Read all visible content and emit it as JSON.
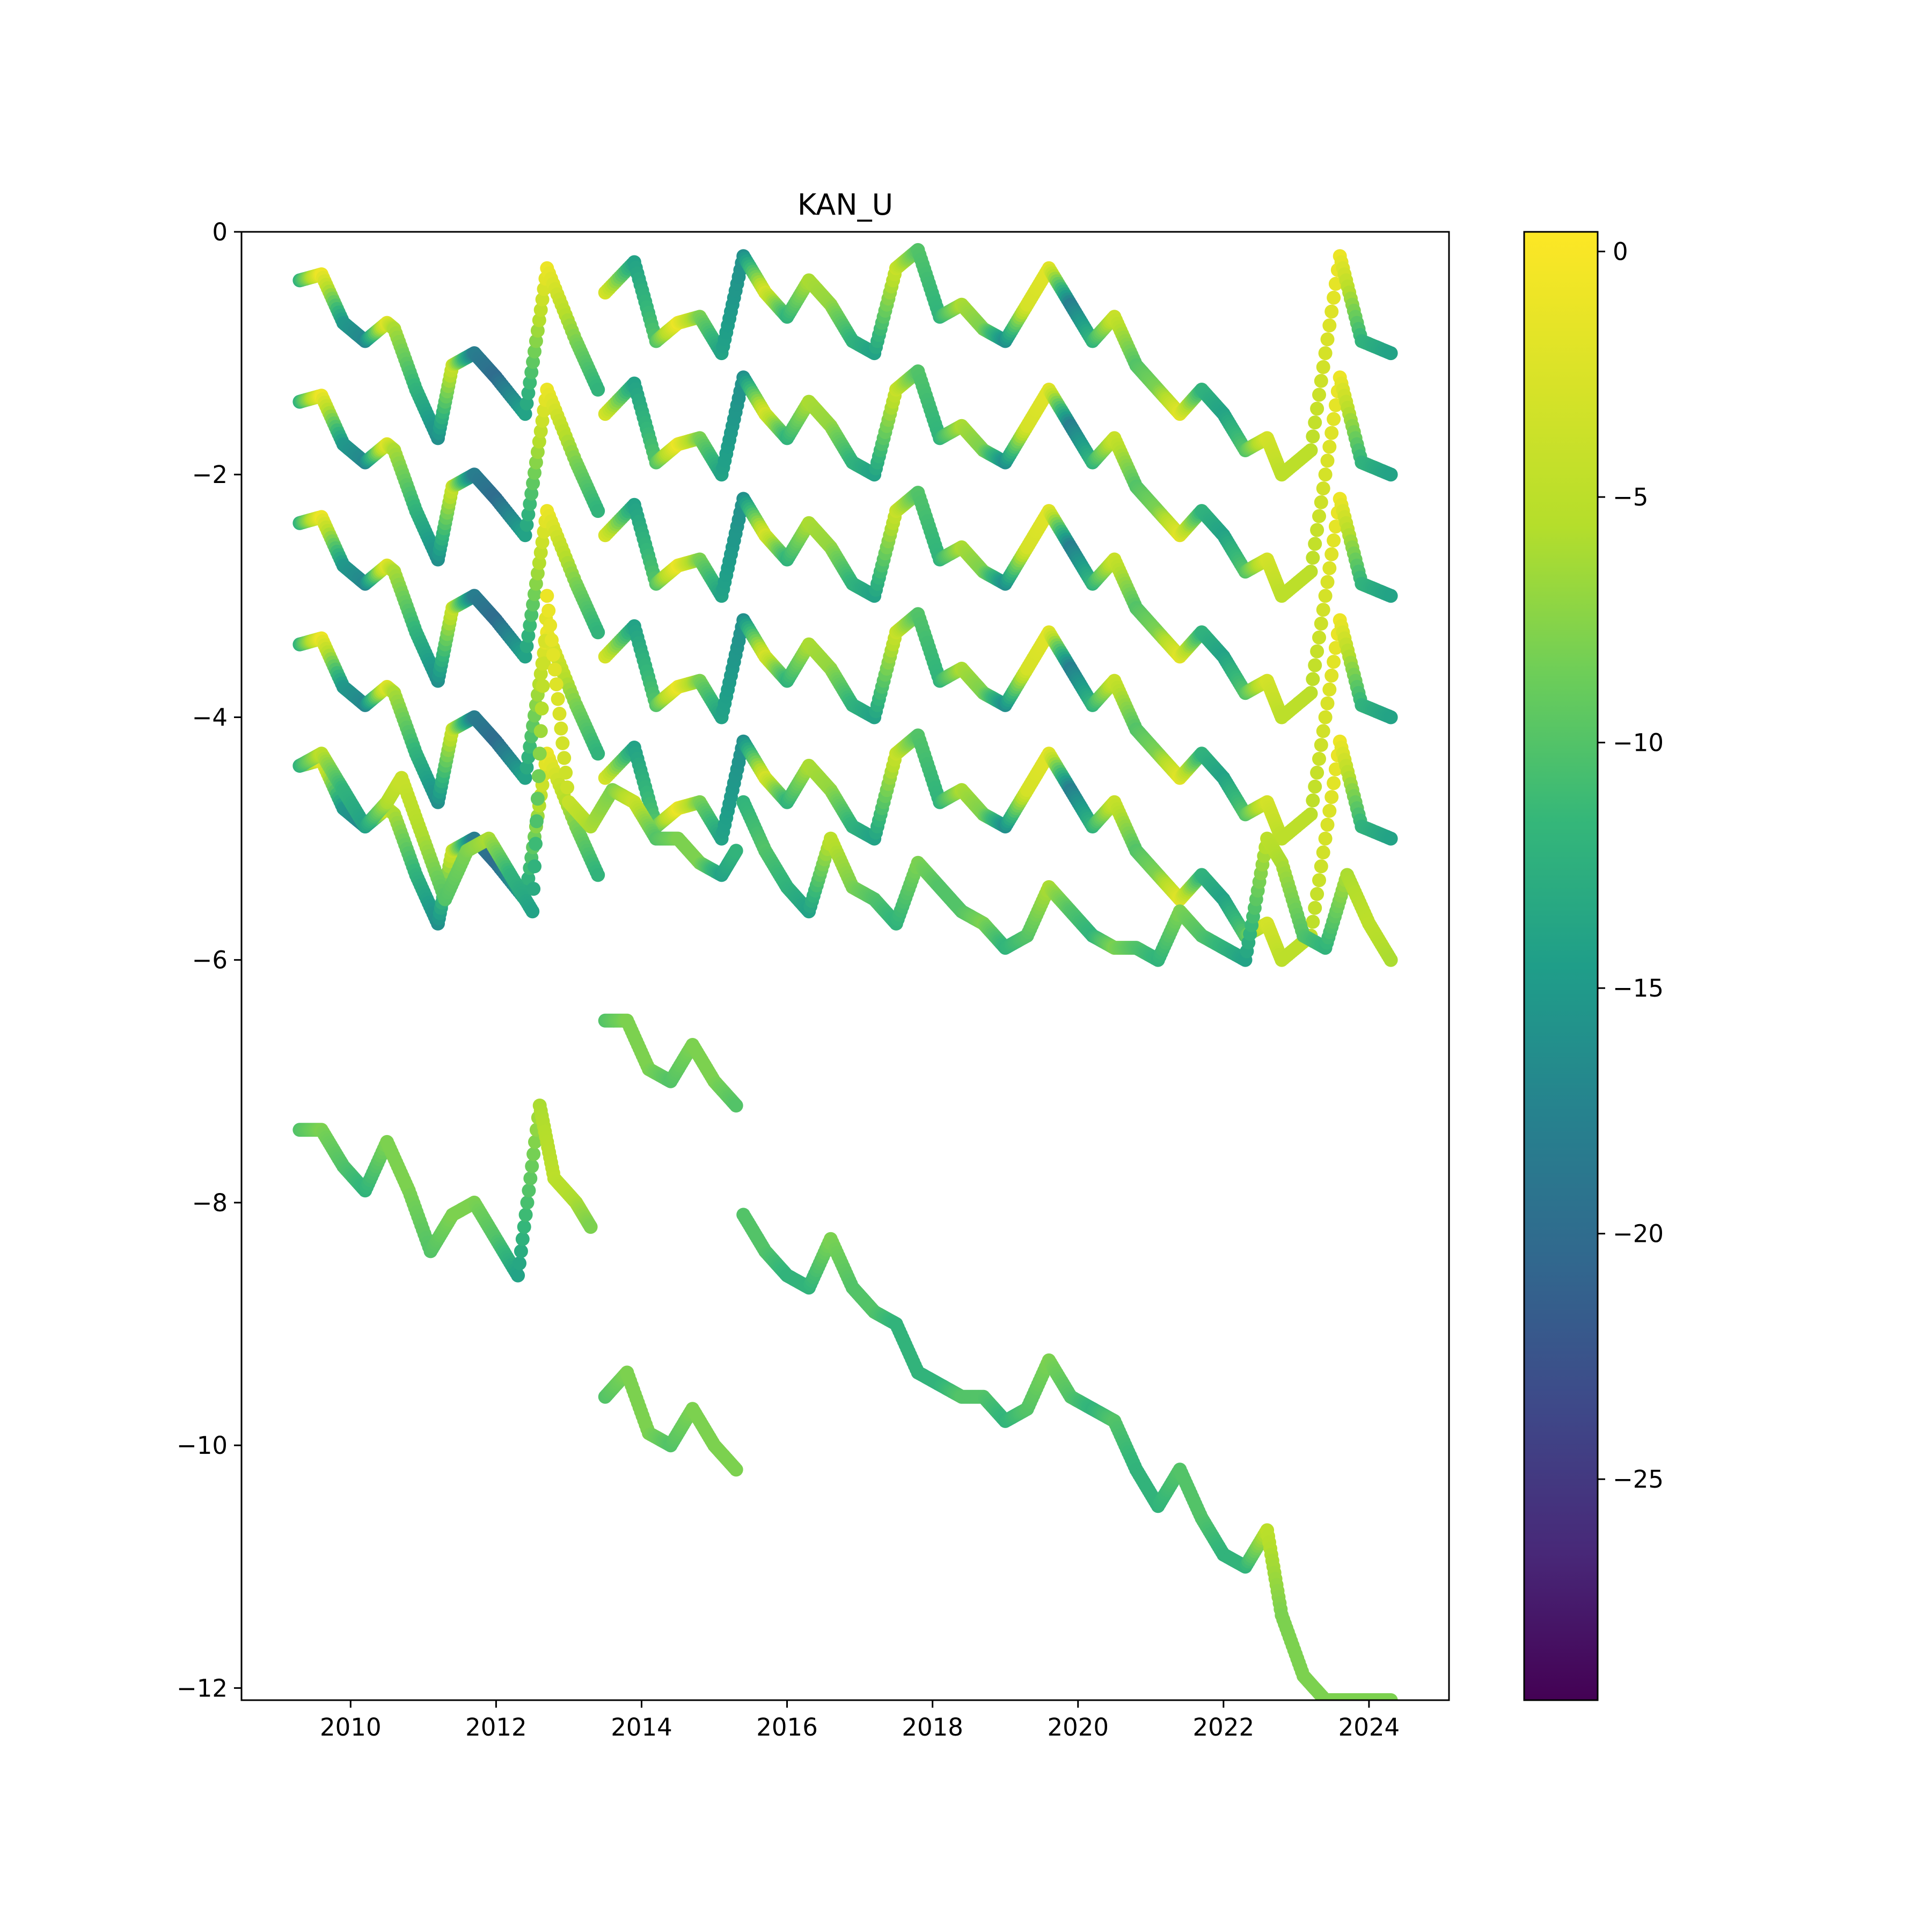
{
  "chart_data": {
    "type": "scatter",
    "title": "KAN_U",
    "xlabel": "",
    "ylabel": "",
    "xlim": [
      2008.5,
      2025.1
    ],
    "ylim": [
      -12.1,
      0
    ],
    "x_ticks": [
      2010,
      2012,
      2014,
      2016,
      2018,
      2020,
      2022,
      2024
    ],
    "x_tick_labels": [
      "2010",
      "2012",
      "2014",
      "2016",
      "2018",
      "2020",
      "2022",
      "2024"
    ],
    "y_ticks": [
      0,
      -2,
      -4,
      -6,
      -8,
      -10,
      -12
    ],
    "y_tick_labels": [
      "0",
      "−2",
      "−4",
      "−6",
      "−8",
      "−10",
      "−12"
    ],
    "colorbar": {
      "colormap": "viridis",
      "range": [
        -29.5,
        0.4
      ],
      "ticks": [
        0,
        -5,
        -10,
        -15,
        -20,
        -25
      ],
      "tick_labels": [
        "0",
        "−5",
        "−10",
        "−15",
        "−20",
        "−25"
      ]
    },
    "grid": false,
    "series": [
      {
        "x": [
          2009.3,
          2009.6,
          2009.9,
          2010.2,
          2010.5,
          2010.6,
          2010.9,
          2011.2,
          2011.4,
          2011.7,
          2012.0,
          2012.4,
          2012.7,
          2013.1,
          2013.4
        ],
        "y": [
          -0.4,
          -0.35,
          -0.75,
          -0.9,
          -0.75,
          -0.8,
          -1.3,
          -1.7,
          -1.1,
          -1.0,
          -1.2,
          -1.5,
          -0.3,
          -0.9,
          -1.3
        ],
        "c": [
          -12,
          -1,
          -15,
          -17,
          -2,
          -6,
          -12,
          -16,
          -4,
          -18,
          -20,
          -14,
          -1,
          -8,
          -12
        ]
      },
      {
        "x": [
          2013.5,
          2013.9,
          2014.2,
          2014.5,
          2014.8,
          2015.1,
          2015.4,
          2015.7,
          2016.0,
          2016.3,
          2016.6,
          2016.9,
          2017.2,
          2017.5,
          2017.8,
          2018.1,
          2018.4,
          2018.7,
          2019.0,
          2019.3,
          2019.6,
          2019.9,
          2020.2,
          2020.5,
          2020.8,
          2021.1,
          2021.4,
          2021.7,
          2022.0,
          2022.3,
          2022.6,
          2022.8,
          2023.2,
          2023.6,
          2023.9,
          2024.3
        ],
        "y": [
          -0.5,
          -0.25,
          -0.9,
          -0.75,
          -0.7,
          -1.0,
          -0.2,
          -0.5,
          -0.7,
          -0.4,
          -0.6,
          -0.9,
          -1.0,
          -0.3,
          -0.15,
          -0.7,
          -0.6,
          -0.8,
          -0.9,
          -0.6,
          -0.3,
          -0.6,
          -0.9,
          -0.7,
          -1.1,
          -1.3,
          -1.5,
          -1.3,
          -1.5,
          -1.8,
          -1.7,
          -2.0,
          -1.8,
          -0.2,
          -0.9,
          -1.0
        ],
        "c": [
          -3,
          -14,
          -10,
          -1,
          -8,
          -14,
          -16,
          -3,
          -12,
          -6,
          -7,
          -12,
          -14,
          -4,
          -10,
          -12,
          -6,
          -8,
          -16,
          -3,
          -2,
          -18,
          -12,
          -4,
          -10,
          -8,
          -2,
          -12,
          -14,
          -10,
          -3,
          -5,
          -5,
          -1,
          -12,
          -14
        ]
      },
      {
        "x": [
          2009.3,
          2009.6,
          2009.9,
          2010.2,
          2010.5,
          2010.7,
          2011.0,
          2011.3,
          2011.6,
          2011.9,
          2012.2,
          2012.5,
          2012.7,
          2013.0,
          2013.3,
          2013.6,
          2013.9,
          2014.2,
          2014.5,
          2014.8,
          2015.1,
          2015.3
        ],
        "y": [
          -4.4,
          -4.3,
          -4.6,
          -4.9,
          -4.7,
          -4.5,
          -5.0,
          -5.5,
          -5.1,
          -5.0,
          -5.3,
          -5.6,
          -3.0,
          -4.7,
          -4.9,
          -4.6,
          -4.7,
          -5.0,
          -5.0,
          -5.2,
          -5.3,
          -5.1
        ],
        "c": [
          -12,
          -5,
          -12,
          -14,
          -6,
          -4,
          -6,
          -10,
          -8,
          -6,
          -12,
          -14,
          -1,
          -4,
          -6,
          -8,
          -4,
          -10,
          -8,
          -8,
          -14,
          -12
        ]
      },
      {
        "x": [
          2015.4,
          2015.7,
          2016.0,
          2016.3,
          2016.6,
          2016.9,
          2017.2,
          2017.5,
          2017.8,
          2018.1,
          2018.4,
          2018.7,
          2019.0,
          2019.3,
          2019.6,
          2019.9,
          2020.2,
          2020.5,
          2020.8,
          2021.1,
          2021.4,
          2021.7,
          2022.0,
          2022.3,
          2022.6,
          2022.8,
          2023.1,
          2023.4,
          2023.7,
          2024.0,
          2024.3
        ],
        "y": [
          -4.7,
          -5.1,
          -5.4,
          -5.6,
          -5.0,
          -5.4,
          -5.5,
          -5.7,
          -5.2,
          -5.4,
          -5.6,
          -5.7,
          -5.9,
          -5.8,
          -5.4,
          -5.6,
          -5.8,
          -5.9,
          -5.9,
          -6.0,
          -5.6,
          -5.8,
          -5.9,
          -6.0,
          -5.0,
          -5.2,
          -5.8,
          -5.9,
          -5.3,
          -5.7,
          -6.0
        ],
        "c": [
          -12,
          -10,
          -12,
          -14,
          -5,
          -8,
          -10,
          -12,
          -8,
          -10,
          -10,
          -8,
          -12,
          -10,
          -6,
          -10,
          -12,
          -8,
          -10,
          -12,
          -8,
          -10,
          -12,
          -14,
          -5,
          -6,
          -10,
          -12,
          -6,
          -5,
          -6
        ]
      },
      {
        "x": [
          2013.5,
          2013.8,
          2014.1,
          2014.4,
          2014.7,
          2015.0,
          2015.3
        ],
        "y": [
          -6.5,
          -6.5,
          -6.9,
          -7.0,
          -6.7,
          -7.0,
          -7.2
        ],
        "c": [
          -10,
          -8,
          -8,
          -10,
          -8,
          -8,
          -10
        ]
      },
      {
        "x": [
          2009.3,
          2009.6,
          2009.9,
          2010.2,
          2010.5,
          2010.8,
          2011.1,
          2011.4,
          2011.7,
          2012.0,
          2012.3,
          2012.6,
          2012.8,
          2013.1,
          2013.3
        ],
        "y": [
          -7.4,
          -7.4,
          -7.7,
          -7.9,
          -7.5,
          -7.9,
          -8.4,
          -8.1,
          -8.0,
          -8.3,
          -8.6,
          -7.2,
          -7.8,
          -8.0,
          -8.2
        ],
        "c": [
          -10,
          -8,
          -10,
          -12,
          -8,
          -8,
          -10,
          -8,
          -8,
          -10,
          -14,
          -6,
          -5,
          -6,
          -8
        ]
      },
      {
        "x": [
          2015.4,
          2015.7,
          2016.0,
          2016.3,
          2016.6,
          2016.9,
          2017.2,
          2017.5,
          2017.8,
          2018.1,
          2018.4,
          2018.7,
          2019.0,
          2019.3,
          2019.6,
          2019.9,
          2020.2,
          2020.5,
          2020.8,
          2021.1,
          2021.4,
          2021.7,
          2022.0,
          2022.3,
          2022.6,
          2022.8,
          2023.1,
          2023.4,
          2023.7,
          2024.0,
          2024.3
        ],
        "y": [
          -8.1,
          -8.4,
          -8.6,
          -8.7,
          -8.3,
          -8.7,
          -8.9,
          -9.0,
          -9.4,
          -9.5,
          -9.6,
          -9.6,
          -9.8,
          -9.7,
          -9.3,
          -9.6,
          -9.7,
          -9.8,
          -10.2,
          -10.5,
          -10.2,
          -10.6,
          -10.9,
          -11.0,
          -10.7,
          -11.4,
          -11.9,
          -12.1,
          -12.1,
          -12.1,
          -12.1
        ],
        "c": [
          -10,
          -10,
          -12,
          -12,
          -8,
          -10,
          -10,
          -12,
          -12,
          -12,
          -10,
          -10,
          -12,
          -10,
          -8,
          -10,
          -12,
          -10,
          -12,
          -12,
          -10,
          -10,
          -12,
          -12,
          -5,
          -8,
          -8,
          -8,
          -8,
          -8,
          -8
        ]
      },
      {
        "x": [
          2013.5,
          2013.8,
          2014.1,
          2014.4,
          2014.7,
          2015.0,
          2015.3
        ],
        "y": [
          -9.6,
          -9.4,
          -9.9,
          -10.0,
          -9.7,
          -10.0,
          -10.2
        ],
        "c": [
          -10,
          -8,
          -8,
          -10,
          -8,
          -8,
          -8
        ]
      }
    ],
    "band_offsets": [
      0,
      -1,
      -2,
      -3,
      -4
    ]
  }
}
